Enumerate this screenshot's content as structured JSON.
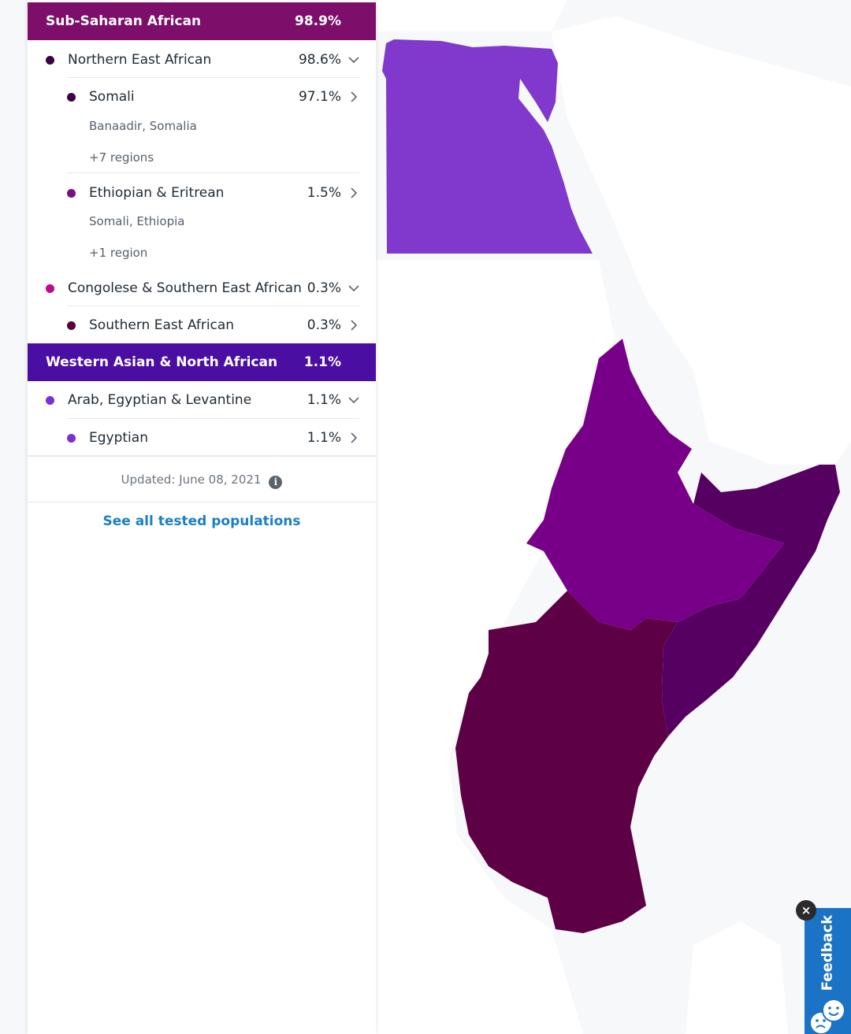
{
  "groups": [
    {
      "label": "Sub-Saharan African",
      "pct": "98.9%",
      "color": "#7d0e69",
      "children": [
        {
          "label": "Northern East African",
          "pct": "98.6%",
          "dot": "#3d0046",
          "children": [
            {
              "label": "Somali",
              "pct": "97.1%",
              "dot": "#3d0046",
              "region_bold": "Banaadir",
              "region_rest": ", Somalia",
              "more": "+7 regions"
            },
            {
              "label": "Ethiopian & Eritrean",
              "pct": "1.5%",
              "dot": "#7a0d80",
              "region_bold": "Somali",
              "region_rest": ", Ethiopia",
              "more": "+1 region"
            }
          ]
        },
        {
          "label": "Congolese & Southern East African",
          "pct": "0.3%",
          "dot": "#bb0a8a",
          "children": [
            {
              "label": "Southern East African",
              "pct": "0.3%",
              "dot": "#5a003c"
            }
          ]
        }
      ]
    },
    {
      "label": "Western Asian & North African",
      "pct": "1.1%",
      "color": "#4b0ea3",
      "children": [
        {
          "label": "Arab, Egyptian & Levantine",
          "pct": "1.1%",
          "dot": "#7b2fd6",
          "children": [
            {
              "label": "Egyptian",
              "pct": "1.1%",
              "dot": "#7b2fd6"
            }
          ]
        }
      ]
    }
  ],
  "footer": {
    "updated": "Updated: June 08, 2021",
    "see_all": "See all tested populations"
  },
  "feedback": {
    "label": "Feedback",
    "close": "×"
  },
  "map_colors": {
    "egypt": "#8038cd",
    "ethiopia": "#780089",
    "somalia": "#560062",
    "kenya_tanzania": "#5e0045"
  }
}
